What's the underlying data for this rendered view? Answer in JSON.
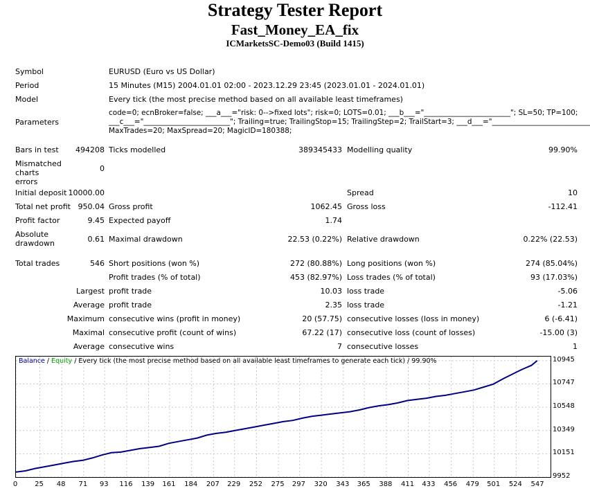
{
  "header": {
    "title": "Strategy Tester Report",
    "ea_name": "Fast_Money_EA_fix",
    "account": "ICMarketsSC-Demo03 (Build 1415)"
  },
  "info": {
    "symbol_label": "Symbol",
    "symbol_value": "EURUSD (Euro vs US Dollar)",
    "period_label": "Period",
    "period_value": "15 Minutes (M15) 2004.01.01 02:00 - 2023.12.29 23:45 (2023.01.01 - 2024.01.01)",
    "model_label": "Model",
    "model_value": "Every tick (the most precise method based on all available least timeframes)",
    "parameters_label": "Parameters",
    "parameters_line1": "code=0; ecnBroker=false; ___a___=\"risk: 0-->fixed lots\"; risk=0; LOTS=0.01; ___b___=\"________________________\"; SL=50; TP=100;",
    "parameters_line2": "___c___=\"________________________\"; Trailing=true; TrailingStop=15; TrailingStep=2; TrailStart=3; ___d___=\"________________________________\";",
    "parameters_line3": "MaxTrades=20; MaxSpread=20; MagicID=180388;"
  },
  "stats": {
    "bars_label": "Bars in test",
    "bars_value": "494208",
    "ticks_label": "Ticks modelled",
    "ticks_value": "389345433",
    "quality_label": "Modelling quality",
    "quality_value": "99.90%",
    "mismatch_label": "Mismatched charts errors",
    "mismatch_value": "0",
    "deposit_label": "Initial deposit",
    "deposit_value": "10000.00",
    "spread_label": "Spread",
    "spread_value": "10",
    "netprofit_label": "Total net profit",
    "netprofit_value": "950.04",
    "grossprofit_label": "Gross profit",
    "grossprofit_value": "1062.45",
    "grossloss_label": "Gross loss",
    "grossloss_value": "-112.41",
    "pf_label": "Profit factor",
    "pf_value": "9.45",
    "payoff_label": "Expected payoff",
    "payoff_value": "1.74",
    "absdd_label": "Absolute drawdown",
    "absdd_value": "0.61",
    "maxdd_label": "Maximal drawdown",
    "maxdd_value": "22.53 (0.22%)",
    "reldd_label": "Relative drawdown",
    "reldd_value": "0.22% (22.53)",
    "trades_label": "Total trades",
    "trades_value": "546",
    "short_label": "Short positions (won %)",
    "short_value": "272 (80.88%)",
    "long_label": "Long positions (won %)",
    "long_value": "274 (85.04%)",
    "profittrades_label": "Profit trades (% of total)",
    "profittrades_value": "453 (82.97%)",
    "losstrades_label": "Loss trades (% of total)",
    "losstrades_value": "93 (17.03%)",
    "largest_label": "Largest",
    "largest_profit_label": "profit trade",
    "largest_profit_value": "10.03",
    "largest_loss_label": "loss trade",
    "largest_loss_value": "-5.06",
    "average_label": "Average",
    "average_profit_label": "profit trade",
    "average_profit_value": "2.35",
    "average_loss_label": "loss trade",
    "average_loss_value": "-1.21",
    "maximum_label": "Maximum",
    "max_wins_label": "consecutive wins (profit in money)",
    "max_wins_value": "20 (57.75)",
    "max_losses_label": "consecutive losses (loss in money)",
    "max_losses_value": "6 (-6.41)",
    "maximal_label": "Maximal",
    "maximal_profit_label": "consecutive profit (count of wins)",
    "maximal_profit_value": "67.22 (17)",
    "maximal_loss_label": "consecutive loss (count of losses)",
    "maximal_loss_value": "-15.00 (3)",
    "average2_label": "Average",
    "avg_wins_label": "consecutive wins",
    "avg_wins_value": "7",
    "avg_losses_label": "consecutive losses",
    "avg_losses_value": "1"
  },
  "chart_data": {
    "type": "line",
    "legend_balance": "Balance",
    "legend_sep1": " / ",
    "legend_equity": "Equity",
    "legend_rest": " / Every tick (the most precise method based on all available least timeframes to generate each tick) / 99.90%",
    "x_ticks": [
      "0",
      "25",
      "48",
      "71",
      "93",
      "116",
      "139",
      "161",
      "184",
      "207",
      "229",
      "252",
      "275",
      "297",
      "320",
      "343",
      "365",
      "388",
      "411",
      "433",
      "456",
      "479",
      "501",
      "524",
      "547"
    ],
    "y_ticks": [
      "10945",
      "10747",
      "10548",
      "10349",
      "10151",
      "9952"
    ],
    "ylim": [
      9952,
      10980
    ],
    "xlim": [
      0,
      560
    ],
    "balance_color": "#000080",
    "equity_color": "#00a000",
    "series": [
      {
        "name": "Balance",
        "x": [
          0,
          10,
          20,
          30,
          40,
          50,
          60,
          70,
          80,
          90,
          100,
          110,
          120,
          130,
          140,
          150,
          160,
          170,
          180,
          190,
          200,
          210,
          220,
          230,
          240,
          250,
          260,
          270,
          280,
          290,
          300,
          310,
          320,
          330,
          340,
          350,
          360,
          370,
          380,
          390,
          400,
          410,
          420,
          430,
          440,
          450,
          460,
          470,
          480,
          490,
          500,
          510,
          520,
          530,
          540,
          546
        ],
        "y": [
          9995,
          10005,
          10025,
          10040,
          10055,
          10070,
          10085,
          10095,
          10115,
          10140,
          10160,
          10165,
          10180,
          10195,
          10205,
          10215,
          10240,
          10255,
          10270,
          10285,
          10310,
          10325,
          10335,
          10350,
          10365,
          10380,
          10395,
          10410,
          10425,
          10435,
          10455,
          10470,
          10480,
          10490,
          10500,
          10510,
          10525,
          10545,
          10560,
          10570,
          10585,
          10605,
          10615,
          10625,
          10640,
          10650,
          10665,
          10680,
          10695,
          10720,
          10745,
          10790,
          10830,
          10870,
          10905,
          10945
        ]
      }
    ]
  }
}
